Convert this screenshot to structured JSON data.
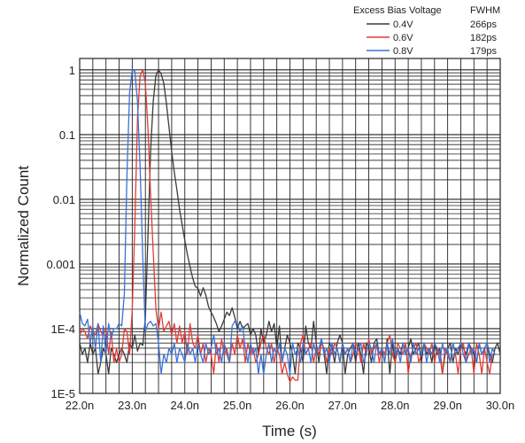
{
  "chart_data": {
    "type": "line",
    "title": "",
    "xlabel": "Time (s)",
    "ylabel": "Normalized Count",
    "x_scale": "linear",
    "y_scale": "log",
    "xlim": [
      2.2e-08,
      3e-08
    ],
    "ylim": [
      1e-05,
      1.5
    ],
    "grid": true,
    "legend_position": "top-right",
    "legend_header": {
      "name": "Excess Bias Voltage",
      "metric": "FWHM"
    },
    "x_ticks": [
      {
        "value": 2.2e-08,
        "label": "22.0n"
      },
      {
        "value": 2.3e-08,
        "label": "23.0n"
      },
      {
        "value": 2.4e-08,
        "label": "24.0n"
      },
      {
        "value": 2.5e-08,
        "label": "25.0n"
      },
      {
        "value": 2.6e-08,
        "label": "26.0n"
      },
      {
        "value": 2.7e-08,
        "label": "27.0n"
      },
      {
        "value": 2.8e-08,
        "label": "28.0n"
      },
      {
        "value": 2.9e-08,
        "label": "29.0n"
      },
      {
        "value": 3e-08,
        "label": "30.0n"
      }
    ],
    "y_ticks": [
      {
        "value": 1,
        "label": "1"
      },
      {
        "value": 0.1,
        "label": "0.1"
      },
      {
        "value": 0.01,
        "label": "0.01"
      },
      {
        "value": 0.001,
        "label": "0.001"
      },
      {
        "value": 0.0001,
        "label": "1E-4"
      },
      {
        "value": 1e-05,
        "label": "1E-5"
      }
    ],
    "series": [
      {
        "name": "0.4V",
        "fwhm": "266ps",
        "color": "#3a3a3a",
        "x_start": 2.2e-08,
        "x_step": 5e-11,
        "values": [
          6e-05,
          4e-05,
          5e-05,
          3e-05,
          6e-05,
          4e-05,
          5e-05,
          2e-05,
          3e-05,
          5e-05,
          4e-05,
          2e-05,
          5e-05,
          4e-05,
          3e-05,
          4e-05,
          5e-05,
          4e-05,
          3e-05,
          6e-05,
          5e-05,
          8e-05,
          4.5e-05,
          6e-05,
          5.5e-05,
          0.00015,
          0.003,
          0.06,
          0.33,
          0.82,
          1.0,
          0.87,
          0.62,
          0.3,
          0.13,
          0.055,
          0.026,
          0.014,
          0.007,
          0.004,
          0.0023,
          0.0014,
          0.0009,
          0.0006,
          0.00045,
          0.00042,
          0.00032,
          0.00043,
          0.00033,
          0.00022,
          0.00018,
          0.00015,
          0.00012,
          9e-05,
          0.00011,
          0.00014,
          0.00018,
          0.00016,
          0.00021,
          0.00015,
          0.0001,
          0.00013,
          0.0001,
          0.00011,
          0.00012,
          8e-05,
          0.0001,
          8e-05,
          4e-05,
          0.0001,
          6e-05,
          8e-05,
          0.00013,
          9e-05,
          0.00012,
          5e-05,
          0.00011,
          3e-05,
          5e-05,
          8e-05,
          6e-05,
          4e-05,
          2e-05,
          6e-05,
          5e-05,
          3e-05,
          0.00011,
          6e-05,
          5e-05,
          0.00013,
          6e-05,
          3e-05,
          7e-05,
          4e-05,
          2e-05,
          6e-05,
          5e-05,
          3e-05,
          6e-05,
          8e-05,
          6e-05,
          2e-05,
          4e-05,
          5e-05,
          6e-05,
          3e-05,
          6e-05,
          4e-05,
          2e-05,
          6e-05,
          5e-05,
          3e-05,
          6e-05,
          7e-05,
          4e-05,
          5e-05,
          3e-05,
          7e-05,
          2e-05,
          6e-05,
          3e-05,
          5e-05,
          4e-05,
          6e-05,
          4e-05,
          5e-05,
          7e-05,
          4e-05,
          5e-05,
          6e-05,
          3e-05,
          6e-05,
          4e-05,
          5e-05,
          3e-05,
          6e-05,
          4e-05,
          5e-05,
          2e-05,
          4e-05,
          5e-05,
          6e-05,
          3e-05,
          5e-05,
          4e-05,
          6e-05,
          5e-05,
          4e-05,
          6e-05,
          5e-05,
          4e-05,
          3e-05,
          6e-05,
          4e-05,
          5e-05,
          6e-05,
          4e-05,
          3e-05,
          5e-05,
          6e-05,
          4e-05
        ]
      },
      {
        "name": "0.6V",
        "fwhm": "182ps",
        "color": "#e23b35",
        "x_start": 2.2e-08,
        "x_step": 5e-11,
        "values": [
          8e-05,
          0.0001,
          9e-05,
          7e-05,
          0.00011,
          9e-05,
          8e-05,
          0.00012,
          9e-05,
          8e-05,
          0.0001,
          4e-05,
          9e-05,
          3e-05,
          5e-05,
          3e-05,
          4e-05,
          0.0001,
          9e-05,
          4e-05,
          0.0002,
          0.004,
          0.18,
          0.82,
          1.0,
          0.62,
          0.12,
          0.011,
          0.0015,
          0.0002,
          0.0001,
          0.00018,
          9e-05,
          0.00011,
          0.00013,
          8e-05,
          0.00012,
          6e-05,
          0.00011,
          6e-05,
          9e-05,
          4e-05,
          0.00012,
          6e-05,
          5e-05,
          8e-05,
          4e-05,
          6e-05,
          3e-05,
          5e-05,
          4e-05,
          2e-05,
          6e-05,
          3e-05,
          7e-05,
          4e-05,
          5e-05,
          3e-05,
          6e-05,
          4e-05,
          8e-05,
          5e-05,
          7e-05,
          3e-05,
          6e-05,
          4e-05,
          5e-05,
          3e-05,
          4e-05,
          6e-05,
          8e-05,
          5e-05,
          4e-05,
          6e-05,
          3e-05,
          5e-05,
          4e-05,
          2e-05,
          3e-05,
          2e-05,
          1.5e-05,
          1.8e-05,
          1.6e-05,
          1.6e-05,
          6e-05,
          8e-05,
          4e-05,
          5e-05,
          6e-05,
          3e-05,
          5e-05,
          4e-05,
          6e-05,
          5e-05,
          3e-05,
          5e-05,
          4e-05,
          6e-05,
          5e-05,
          3e-05,
          6e-05,
          4e-05,
          5e-05,
          3e-05,
          4e-05,
          6e-05,
          5e-05,
          3e-05,
          6e-05,
          4e-05,
          7e-05,
          4e-05,
          5e-05,
          6e-05,
          3e-05,
          5e-05,
          4e-05,
          6e-05,
          8e-05,
          4e-05,
          3e-05,
          6e-05,
          5e-05,
          4e-05,
          6e-05,
          2e-05,
          4e-05,
          5e-05,
          6e-05,
          3e-05,
          4e-05,
          6e-05,
          5e-05,
          4e-05,
          6e-05,
          3e-05,
          5e-05,
          4e-05,
          2e-05,
          5e-05,
          4e-05,
          3e-05,
          6e-05,
          4e-05,
          2e-05,
          5e-05,
          6e-05,
          3e-05,
          4e-05,
          5e-05,
          2e-05,
          6e-05,
          4e-05,
          2e-05,
          5e-05,
          3e-05,
          2e-05,
          4e-05
        ]
      },
      {
        "name": "0.8V",
        "fwhm": "179ps",
        "color": "#3a72d6",
        "x_start": 2.2e-08,
        "x_step": 5e-11,
        "values": [
          0.00018,
          0.00012,
          0.00011,
          0.00014,
          6e-05,
          0.00011,
          5e-05,
          0.00012,
          3e-05,
          0.00011,
          4e-05,
          0.00012,
          7e-05,
          0.0001,
          0.0001,
          0.00012,
          0.00011,
          0.00035,
          0.024,
          0.45,
          1.0,
          0.95,
          0.32,
          0.03,
          0.0012,
          9e-05,
          0.00012,
          0.00013,
          0.00011,
          0.00012,
          6e-05,
          2e-05,
          4e-05,
          3e-05,
          5e-05,
          4e-05,
          6e-05,
          3e-05,
          5e-05,
          4e-05,
          3e-05,
          6e-05,
          4e-05,
          5e-05,
          3e-05,
          6e-05,
          4e-05,
          3e-05,
          6e-05,
          4e-05,
          5e-05,
          8e-05,
          4e-05,
          5e-05,
          3e-05,
          6e-05,
          4e-05,
          3e-05,
          0.00011,
          0.00013,
          0.00012,
          9e-05,
          0.00011,
          5e-05,
          3e-05,
          6e-05,
          4e-05,
          5e-05,
          2e-05,
          4e-05,
          2e-05,
          4e-05,
          6e-05,
          3e-05,
          5e-05,
          4e-05,
          6e-05,
          3e-05,
          5e-05,
          4e-05,
          2e-05,
          6e-05,
          4e-05,
          5e-05,
          3e-05,
          6e-05,
          4e-05,
          5e-05,
          3e-05,
          6e-05,
          4e-05,
          5e-05,
          7e-05,
          4e-05,
          5e-05,
          3e-05,
          6e-05,
          4e-05,
          5e-05,
          3e-05,
          6e-05,
          4e-05,
          5e-05,
          3e-05,
          6e-05,
          4e-05,
          5e-05,
          6e-05,
          3e-05,
          4e-05,
          6e-05,
          5e-05,
          3e-05,
          6e-05,
          4e-05,
          5e-05,
          3e-05,
          6e-05,
          4e-05,
          7e-05,
          4e-05,
          5e-05,
          3e-05,
          6e-05,
          4e-05,
          5e-05,
          3e-05,
          6e-05,
          4e-05,
          5e-05,
          4e-05,
          6e-05,
          3e-05,
          5e-05,
          4e-05,
          6e-05,
          5e-05,
          3e-05,
          6e-05,
          4e-05,
          5e-05,
          3e-05,
          6e-05,
          4e-05,
          5e-05,
          6e-05,
          4e-05,
          3e-05,
          6e-05,
          4e-05,
          5e-05,
          3e-05,
          6e-05,
          4e-05,
          5e-05,
          6e-05,
          3e-05,
          5e-05,
          4e-05
        ]
      }
    ]
  }
}
